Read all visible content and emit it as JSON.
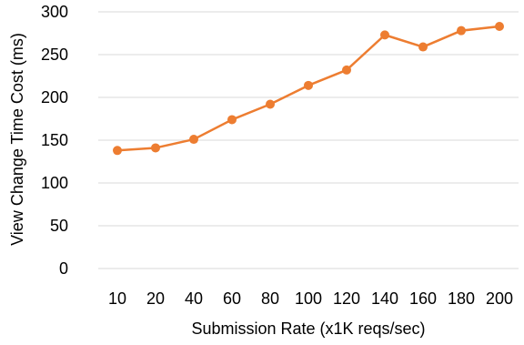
{
  "chart_data": {
    "type": "line",
    "title": "",
    "xlabel": "Submission  Rate (x1K reqs/sec)",
    "ylabel": "View Change Time Cost (ms)",
    "categories": [
      "10",
      "20",
      "40",
      "60",
      "80",
      "100",
      "120",
      "140",
      "160",
      "180",
      "200"
    ],
    "series": [
      {
        "values": [
          138,
          141,
          151,
          174,
          192,
          214,
          232,
          273,
          259,
          278,
          283
        ]
      }
    ],
    "ylim": [
      0,
      300
    ],
    "yticks": [
      "0",
      "50",
      "100",
      "150",
      "200",
      "250",
      "300"
    ],
    "grid": "horizontal",
    "legend": "none",
    "colors": {
      "line": "#ED7D31",
      "marker": "#ED7D31",
      "grid": "#D9D9D9"
    }
  }
}
